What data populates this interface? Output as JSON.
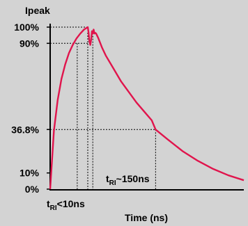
{
  "chart_data": {
    "type": "line",
    "ylabel": "Ipeak",
    "xlabel": "Time (ns)",
    "y_tick_labels": [
      {
        "label": "100%",
        "value": 1.0
      },
      {
        "label": "90%",
        "value": 0.9
      },
      {
        "label": "36.8%",
        "value": 0.368
      },
      {
        "label": "10%",
        "value": 0.1
      },
      {
        "label": "0%",
        "value": 0.0
      }
    ],
    "annotations": {
      "rise": {
        "main": "t",
        "sub": "RI",
        "rest": "<10ns"
      },
      "decay": {
        "main": "t",
        "sub": "RI",
        "rest": "~150ns"
      }
    },
    "xlim": [
      0,
      400
    ],
    "ylim": [
      0,
      1.0
    ],
    "series": [
      {
        "color": "#e0144c",
        "x": [
          0,
          1,
          2,
          3,
          4,
          5,
          6,
          7,
          8,
          9,
          10,
          10.5,
          11,
          11.5,
          12,
          12.5,
          13,
          13.5,
          14,
          14.5,
          15,
          20,
          30,
          40,
          60,
          80,
          100,
          120,
          140,
          160,
          170,
          200,
          240,
          280,
          320,
          360,
          400
        ],
        "y": [
          0,
          0.36,
          0.55,
          0.68,
          0.77,
          0.84,
          0.89,
          0.93,
          0.96,
          0.985,
          1.0,
          0.965,
          0.91,
          0.89,
          0.92,
          0.975,
          0.96,
          0.985,
          0.96,
          0.965,
          0.96,
          0.935,
          0.875,
          0.825,
          0.745,
          0.665,
          0.6,
          0.535,
          0.48,
          0.425,
          0.368,
          0.31,
          0.235,
          0.175,
          0.125,
          0.085,
          0.055
        ]
      }
    ],
    "reference_points": {
      "rise_time_x": 10,
      "peak_time_x": 13,
      "decay_time_x": 170
    }
  }
}
